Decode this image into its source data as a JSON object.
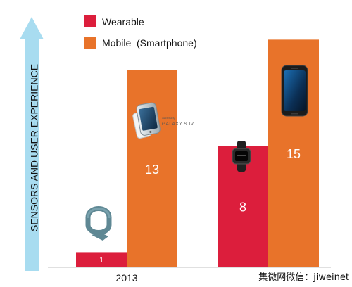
{
  "chart_data": {
    "type": "bar",
    "title": "",
    "xlabel": "",
    "ylabel": "SENSORS AND USER EXPERIENCE",
    "categories": [
      "2013",
      ""
    ],
    "series": [
      {
        "name": "Wearable",
        "values": [
          1,
          8
        ]
      },
      {
        "name": "Mobile  (Smartphone)",
        "values": [
          13,
          15
        ]
      }
    ],
    "data_labels": [
      [
        "1",
        "8"
      ],
      [
        "13",
        "15"
      ]
    ],
    "ylim": [
      0,
      16.5
    ],
    "grid": false,
    "legend_position": "top-center"
  },
  "colors": {
    "wearable": "#dc1e3c",
    "mobile": "#e8732a",
    "arrow": "#a8dcf0",
    "axis": "#c0c0c0",
    "label_text": "#ffffff",
    "text": "#111111"
  },
  "product_images": [
    {
      "name": "fitness-band-icon",
      "series": 0,
      "category": 0
    },
    {
      "name": "galaxy-phone-icon",
      "series": 1,
      "category": 0,
      "brand": "Samsung",
      "model": "GALAXY S IV"
    },
    {
      "name": "smartwatch-icon",
      "series": 0,
      "category": 1
    },
    {
      "name": "edge-phone-icon",
      "series": 1,
      "category": 1
    }
  ],
  "watermark": "集微网微信：jiweinet"
}
